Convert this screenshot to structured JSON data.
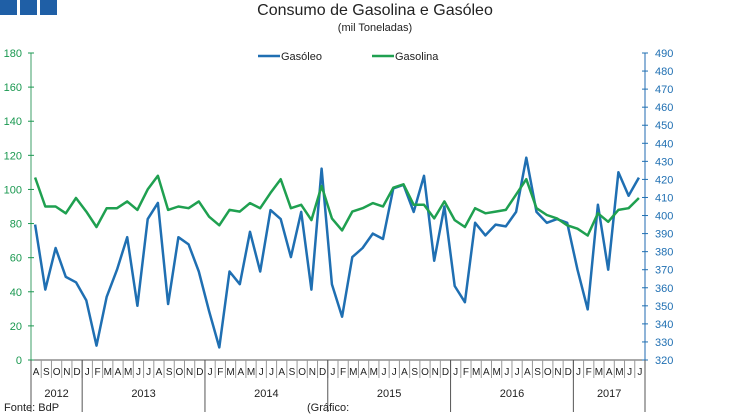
{
  "chart_data": {
    "type": "line",
    "title": "Consumo de Gasolina e Gasóleo",
    "subtitle": "(mil Toneladas)",
    "months": [
      "A",
      "S",
      "O",
      "N",
      "D",
      "J",
      "F",
      "M",
      "A",
      "M",
      "J",
      "J",
      "A",
      "S",
      "O",
      "N",
      "D",
      "J",
      "F",
      "M",
      "A",
      "M",
      "J",
      "J",
      "A",
      "S",
      "O",
      "N",
      "D",
      "J",
      "F",
      "M",
      "A",
      "M",
      "J",
      "J",
      "A",
      "S",
      "O",
      "N",
      "D",
      "J",
      "F",
      "M",
      "A",
      "M",
      "J",
      "J",
      "A",
      "S",
      "O",
      "N",
      "D",
      "J",
      "F",
      "M",
      "A",
      "M",
      "J",
      "J"
    ],
    "years": [
      {
        "label": "2012",
        "count": 5
      },
      {
        "label": "2013",
        "count": 12
      },
      {
        "label": "2014",
        "count": 12
      },
      {
        "label": "2015",
        "count": 12
      },
      {
        "label": "2016",
        "count": 12
      },
      {
        "label": "2017",
        "count": 7
      }
    ],
    "y_left": {
      "min": 0,
      "max": 180,
      "step": 20,
      "color": "#1a9850"
    },
    "y_right": {
      "min": 320,
      "max": 490,
      "step": 10,
      "color": "#1f6fb2"
    },
    "series": [
      {
        "name": "Gasóleo",
        "axis": "right",
        "color": "#1f6fb2",
        "values": [
          395,
          359,
          382,
          366,
          363,
          353,
          328,
          355,
          370,
          388,
          350,
          398,
          407,
          351,
          388,
          384,
          369,
          347,
          327,
          369,
          362,
          391,
          369,
          403,
          398,
          377,
          402,
          359,
          426,
          362,
          344,
          377,
          382,
          390,
          387,
          415,
          417,
          402,
          422,
          375,
          405,
          361,
          352,
          396,
          389,
          395,
          394,
          402,
          432,
          402,
          396,
          398,
          396,
          370,
          348,
          406,
          370,
          424,
          411,
          421
        ]
      },
      {
        "name": "Gasolina",
        "axis": "left",
        "color": "#1fa050",
        "values": [
          107,
          90,
          90,
          86,
          95,
          87,
          78,
          89,
          89,
          93,
          88,
          100,
          108,
          88,
          90,
          89,
          93,
          84,
          79,
          88,
          87,
          92,
          89,
          98,
          106,
          89,
          91,
          82,
          102,
          83,
          76,
          87,
          89,
          92,
          90,
          101,
          103,
          91,
          91,
          83,
          93,
          82,
          78,
          89,
          86,
          87,
          88,
          97,
          106,
          89,
          85,
          83,
          79,
          77,
          73,
          86,
          81,
          88,
          89,
          95
        ]
      }
    ],
    "legend": "top-center",
    "grid": false
  },
  "footer": {
    "source": "Fonte: BdP",
    "chart_ref": "(Gráfico:"
  }
}
